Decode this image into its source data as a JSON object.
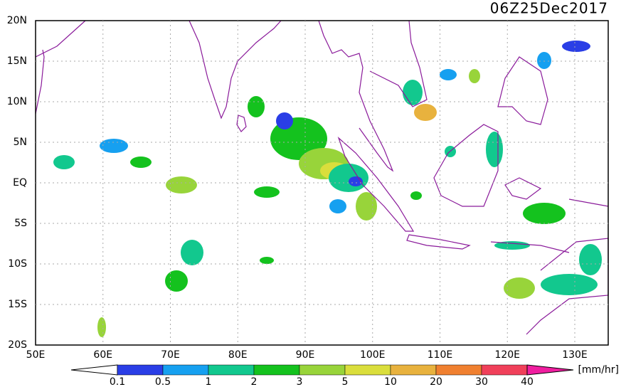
{
  "header": {
    "title": "06Z25Dec2017"
  },
  "map": {
    "lat_labels": [
      "20N",
      "15N",
      "10N",
      "5N",
      "EQ",
      "5S",
      "10S",
      "15S",
      "20S"
    ],
    "lon_labels": [
      "50E",
      "60E",
      "70E",
      "80E",
      "90E",
      "100E",
      "110E",
      "120E",
      "130E"
    ],
    "grid": true
  },
  "colorbar": {
    "levels": [
      0.1,
      0.5,
      1,
      2,
      3,
      5,
      10,
      20,
      30,
      40
    ],
    "colors": [
      "#ffffff",
      "#2a3ee6",
      "#16a0f0",
      "#12c88e",
      "#14c21e",
      "#98d43a",
      "#dade3c",
      "#e8b23e",
      "#f08030",
      "#f0405a",
      "#f01ea0"
    ],
    "unit": "[mm/hr]"
  }
}
